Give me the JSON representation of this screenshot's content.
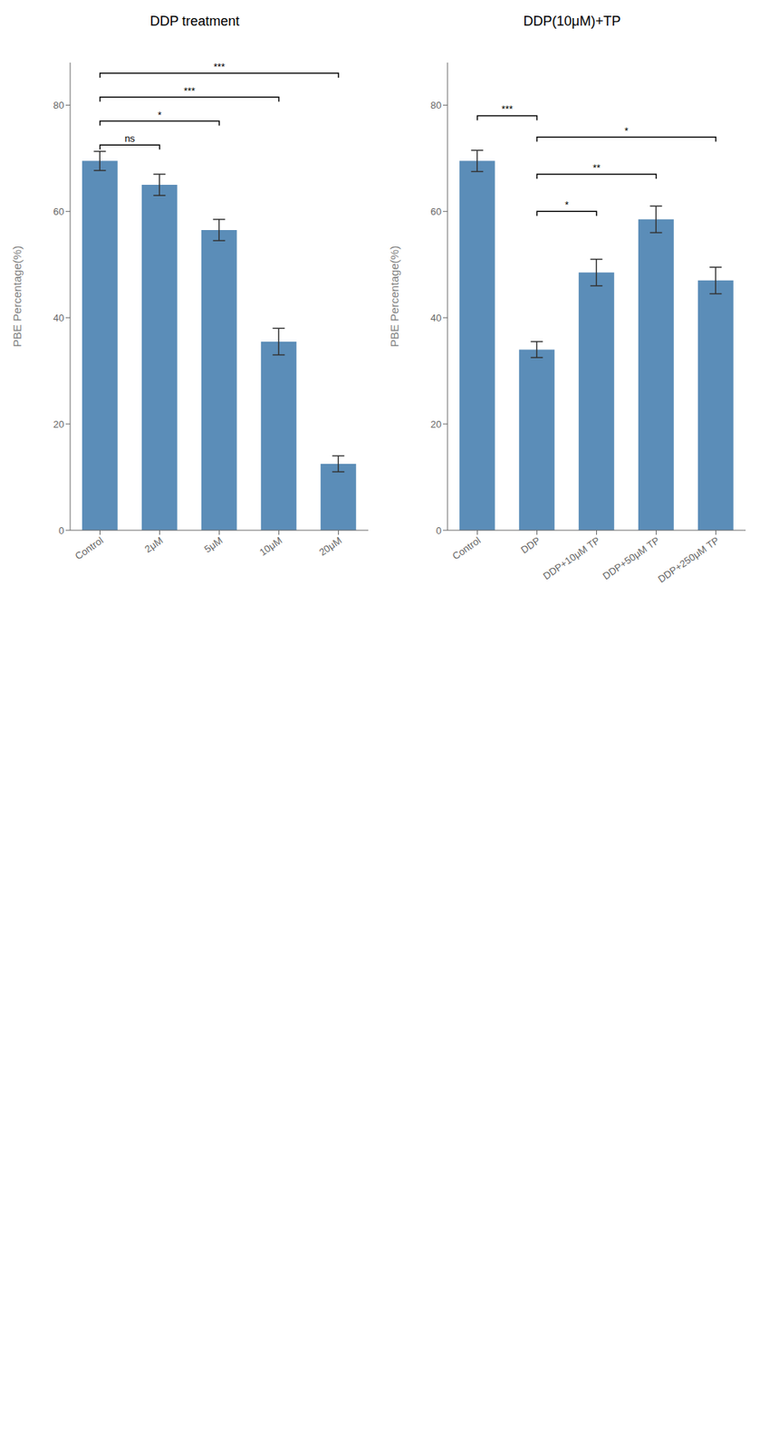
{
  "chart_data": [
    {
      "type": "bar",
      "title": "DDP treatment",
      "categories": [
        "Control",
        "2μM",
        "5μM",
        "10μM",
        "20μM"
      ],
      "values": [
        69.5,
        65.0,
        56.5,
        35.5,
        12.5
      ],
      "errors": [
        1.8,
        2.0,
        2.0,
        2.5,
        1.5
      ],
      "color": "#5B8DB8",
      "ylabel": "PBE Percentage(%)",
      "ylim": [
        0,
        88
      ],
      "yticks": [
        0,
        20,
        40,
        60,
        80
      ],
      "annotations": [
        {
          "from": "Control",
          "to": "2μM",
          "y": 72.5,
          "label": "ns"
        },
        {
          "from": "Control",
          "to": "5μM",
          "y": 77.0,
          "label": "*"
        },
        {
          "from": "Control",
          "to": "10μM",
          "y": 81.5,
          "label": "***"
        },
        {
          "from": "Control",
          "to": "20μM",
          "y": 86.0,
          "label": "***"
        }
      ]
    },
    {
      "type": "bar",
      "title": "DDP(10μM)+TP",
      "categories": [
        "Control",
        "DDP",
        "DDP+10μM TP",
        "DDP+50μM TP",
        "DDP+250μM TP"
      ],
      "values": [
        69.5,
        34.0,
        48.5,
        58.5,
        47.0
      ],
      "errors": [
        2.0,
        1.5,
        2.5,
        2.5,
        2.5
      ],
      "color": "#5B8DB8",
      "ylabel": "PBE Percentage(%)",
      "ylim": [
        0,
        88
      ],
      "yticks": [
        0,
        20,
        40,
        60,
        80
      ],
      "annotations": [
        {
          "from": "Control",
          "to": "DDP",
          "y": 78.0,
          "label": "***"
        },
        {
          "from": "DDP",
          "to": "DDP+10μM TP",
          "y": 60.0,
          "label": "*"
        },
        {
          "from": "DDP",
          "to": "DDP+50μM TP",
          "y": 67.0,
          "label": "**"
        },
        {
          "from": "DDP",
          "to": "DDP+250μM TP",
          "y": 74.0,
          "label": "*"
        }
      ]
    }
  ]
}
